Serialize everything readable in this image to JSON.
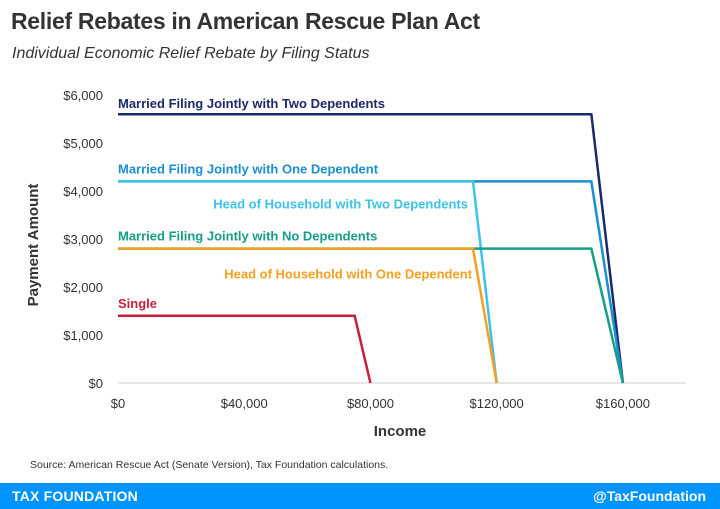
{
  "header": {
    "title": "Relief Rebates in American Rescue Plan Act",
    "subtitle": "Individual Economic Relief Rebate by Filing Status"
  },
  "source": "Source: American Rescue Act (Senate Version), Tax Foundation calculations.",
  "footer": {
    "brand": "TAX FOUNDATION",
    "handle": "@TaxFoundation",
    "background": "#0094ff"
  },
  "chart_data": {
    "type": "line",
    "xlabel": "Income",
    "ylabel": "Payment Amount",
    "xlim": [
      0,
      180000
    ],
    "ylim": [
      0,
      6000
    ],
    "x_ticks": [
      0,
      40000,
      80000,
      120000,
      160000
    ],
    "x_tick_labels": [
      "$0",
      "$40,000",
      "$80,000",
      "$120,000",
      "$160,000"
    ],
    "y_ticks": [
      0,
      1000,
      2000,
      3000,
      4000,
      5000,
      6000
    ],
    "y_tick_labels": [
      "$0",
      "$1,000",
      "$2,000",
      "$3,000",
      "$4,000",
      "$5,000",
      "$6,000"
    ],
    "grid": false,
    "series": [
      {
        "name": "Married Filing Jointly with Two Dependents",
        "color": "#1b2a6b",
        "x": [
          0,
          150000,
          160000
        ],
        "y": [
          5600,
          5600,
          0
        ]
      },
      {
        "name": "Married Filing Jointly with One Dependent",
        "color": "#1a8fd1",
        "x": [
          0,
          150000,
          160000
        ],
        "y": [
          4200,
          4200,
          0
        ]
      },
      {
        "name": "Head of Household with Two Dependents",
        "color": "#3cc3e8",
        "x": [
          0,
          112500,
          120000
        ],
        "y": [
          4200,
          4200,
          0
        ]
      },
      {
        "name": "Married Filing Jointly with No Dependents",
        "color": "#169e86",
        "x": [
          0,
          150000,
          160000
        ],
        "y": [
          2800,
          2800,
          0
        ]
      },
      {
        "name": "Head of Household with One Dependent",
        "color": "#f5a021",
        "x": [
          0,
          112500,
          120000
        ],
        "y": [
          2800,
          2800,
          0
        ]
      },
      {
        "name": "Single",
        "color": "#c8203a",
        "x": [
          0,
          75000,
          80000
        ],
        "y": [
          1400,
          1400,
          0
        ]
      }
    ]
  }
}
